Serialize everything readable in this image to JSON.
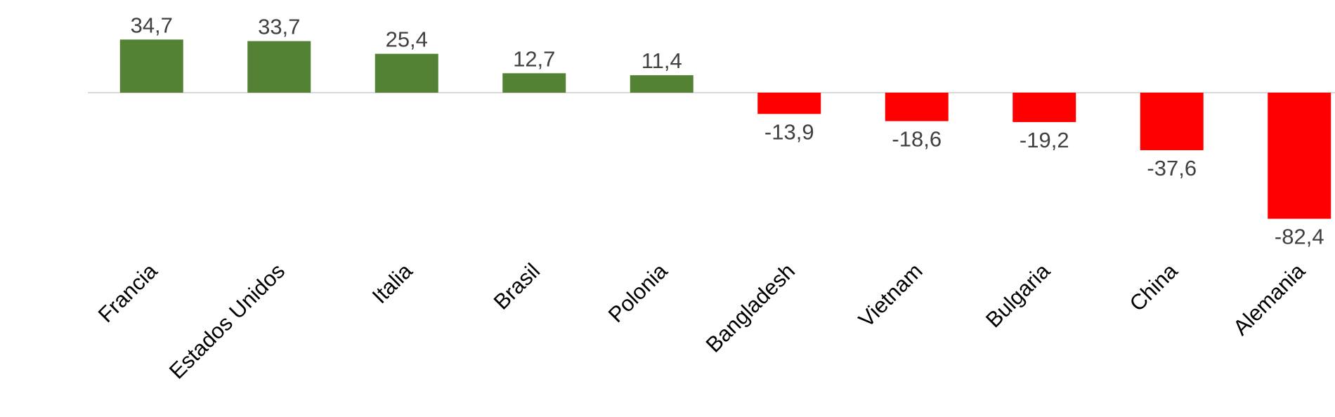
{
  "chart_data": {
    "type": "bar",
    "title": "",
    "xlabel": "",
    "ylabel": "",
    "categories": [
      "Francia",
      "Estados Unidos",
      "Italia",
      "Brasil",
      "Polonia",
      "Bangladesh",
      "Vietnam",
      "Bulgaria",
      "China",
      "Alemania"
    ],
    "values": [
      34.7,
      33.7,
      25.4,
      12.7,
      11.4,
      -13.9,
      -18.6,
      -19.2,
      -37.6,
      -82.4
    ],
    "data_labels": [
      "34,7",
      "33,7",
      "25,4",
      "12,7",
      "11,4",
      "-13,9",
      "-18,6",
      "-19,2",
      "-37,6",
      "-82,4"
    ],
    "colors": {
      "positive": "#548235",
      "negative": "#FF0000",
      "axis": "#D9D9D9"
    },
    "ylim": [
      -82.4,
      34.7
    ],
    "legend": "none",
    "grid": false,
    "tick_label_rotation": "-45deg"
  }
}
